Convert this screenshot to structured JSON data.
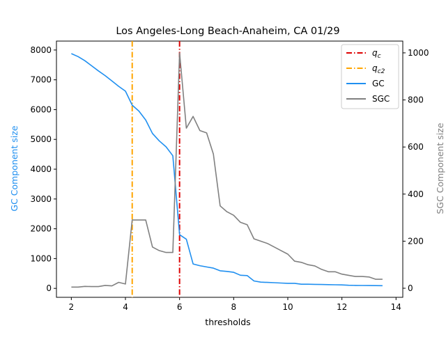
{
  "chart_data": {
    "type": "line",
    "title": "Los Angeles-Long Beach-Anaheim, CA 01/29",
    "xlabel": "thresholds",
    "ylabel_left": "GC Component size",
    "ylabel_right": "SGC Component size",
    "xlim": [
      1.45,
      14.25
    ],
    "ylim_left": [
      -300,
      8300
    ],
    "ylim_right": [
      -38.5,
      1050
    ],
    "xticks": [
      2,
      4,
      6,
      8,
      10,
      12,
      14
    ],
    "yticks_left": [
      0,
      1000,
      2000,
      3000,
      4000,
      5000,
      6000,
      7000,
      8000
    ],
    "yticks_right": [
      0,
      200,
      400,
      600,
      800,
      1000
    ],
    "grid": false,
    "legend_position": "top-right",
    "vlines": [
      {
        "name": "q_c",
        "x": 6.0,
        "color": "#dd0000",
        "style": "dashdot"
      },
      {
        "name": "q_c2",
        "x": 4.25,
        "color": "#ffa500",
        "style": "dashdot"
      }
    ],
    "series": [
      {
        "name": "GC",
        "axis": "left",
        "color": "#1f8ff0",
        "x": [
          2.0,
          2.25,
          2.5,
          2.75,
          3.0,
          3.25,
          3.5,
          3.75,
          4.0,
          4.25,
          4.5,
          4.75,
          5.0,
          5.25,
          5.5,
          5.75,
          6.0,
          6.25,
          6.5,
          6.75,
          7.0,
          7.25,
          7.5,
          7.75,
          8.0,
          8.25,
          8.5,
          8.75,
          9.0,
          9.25,
          9.5,
          9.75,
          10.0,
          10.25,
          10.5,
          10.75,
          11.0,
          11.25,
          11.5,
          11.75,
          12.0,
          12.25,
          12.5,
          12.75,
          13.0,
          13.25,
          13.5
        ],
        "values": [
          7880,
          7780,
          7640,
          7470,
          7300,
          7140,
          6960,
          6780,
          6620,
          6150,
          5950,
          5650,
          5200,
          4950,
          4750,
          4450,
          1800,
          1650,
          820,
          760,
          720,
          680,
          590,
          570,
          540,
          440,
          430,
          250,
          210,
          200,
          190,
          180,
          170,
          170,
          140,
          140,
          135,
          130,
          125,
          120,
          115,
          105,
          100,
          98,
          96,
          93,
          90
        ]
      },
      {
        "name": "SGC",
        "axis": "right",
        "color": "#808080",
        "x": [
          2.0,
          2.25,
          2.5,
          2.75,
          3.0,
          3.25,
          3.5,
          3.75,
          4.0,
          4.25,
          4.5,
          4.75,
          5.0,
          5.25,
          5.5,
          5.75,
          6.0,
          6.25,
          6.5,
          6.75,
          7.0,
          7.25,
          7.5,
          7.75,
          8.0,
          8.25,
          8.5,
          8.75,
          9.0,
          9.25,
          9.5,
          9.75,
          10.0,
          10.25,
          10.5,
          10.75,
          11.0,
          11.25,
          11.5,
          11.75,
          12.0,
          12.25,
          12.5,
          12.75,
          13.0,
          13.25,
          13.5
        ],
        "values": [
          5,
          5,
          8,
          7,
          7,
          12,
          10,
          25,
          18,
          290,
          290,
          290,
          175,
          160,
          152,
          152,
          1000,
          680,
          730,
          670,
          660,
          570,
          350,
          325,
          310,
          280,
          270,
          210,
          200,
          190,
          175,
          160,
          145,
          115,
          110,
          100,
          95,
          80,
          70,
          70,
          60,
          55,
          50,
          50,
          48,
          38,
          38
        ]
      }
    ],
    "legend": {
      "items": [
        {
          "label": "q",
          "sub": "c",
          "color": "#dd0000",
          "style": "dashdot"
        },
        {
          "label": "q",
          "sub": "c2",
          "color": "#ffa500",
          "style": "dashdot"
        },
        {
          "label": "GC",
          "sub": "",
          "color": "#1f8ff0",
          "style": "solid"
        },
        {
          "label": "SGC",
          "sub": "",
          "color": "#808080",
          "style": "solid"
        }
      ]
    }
  }
}
